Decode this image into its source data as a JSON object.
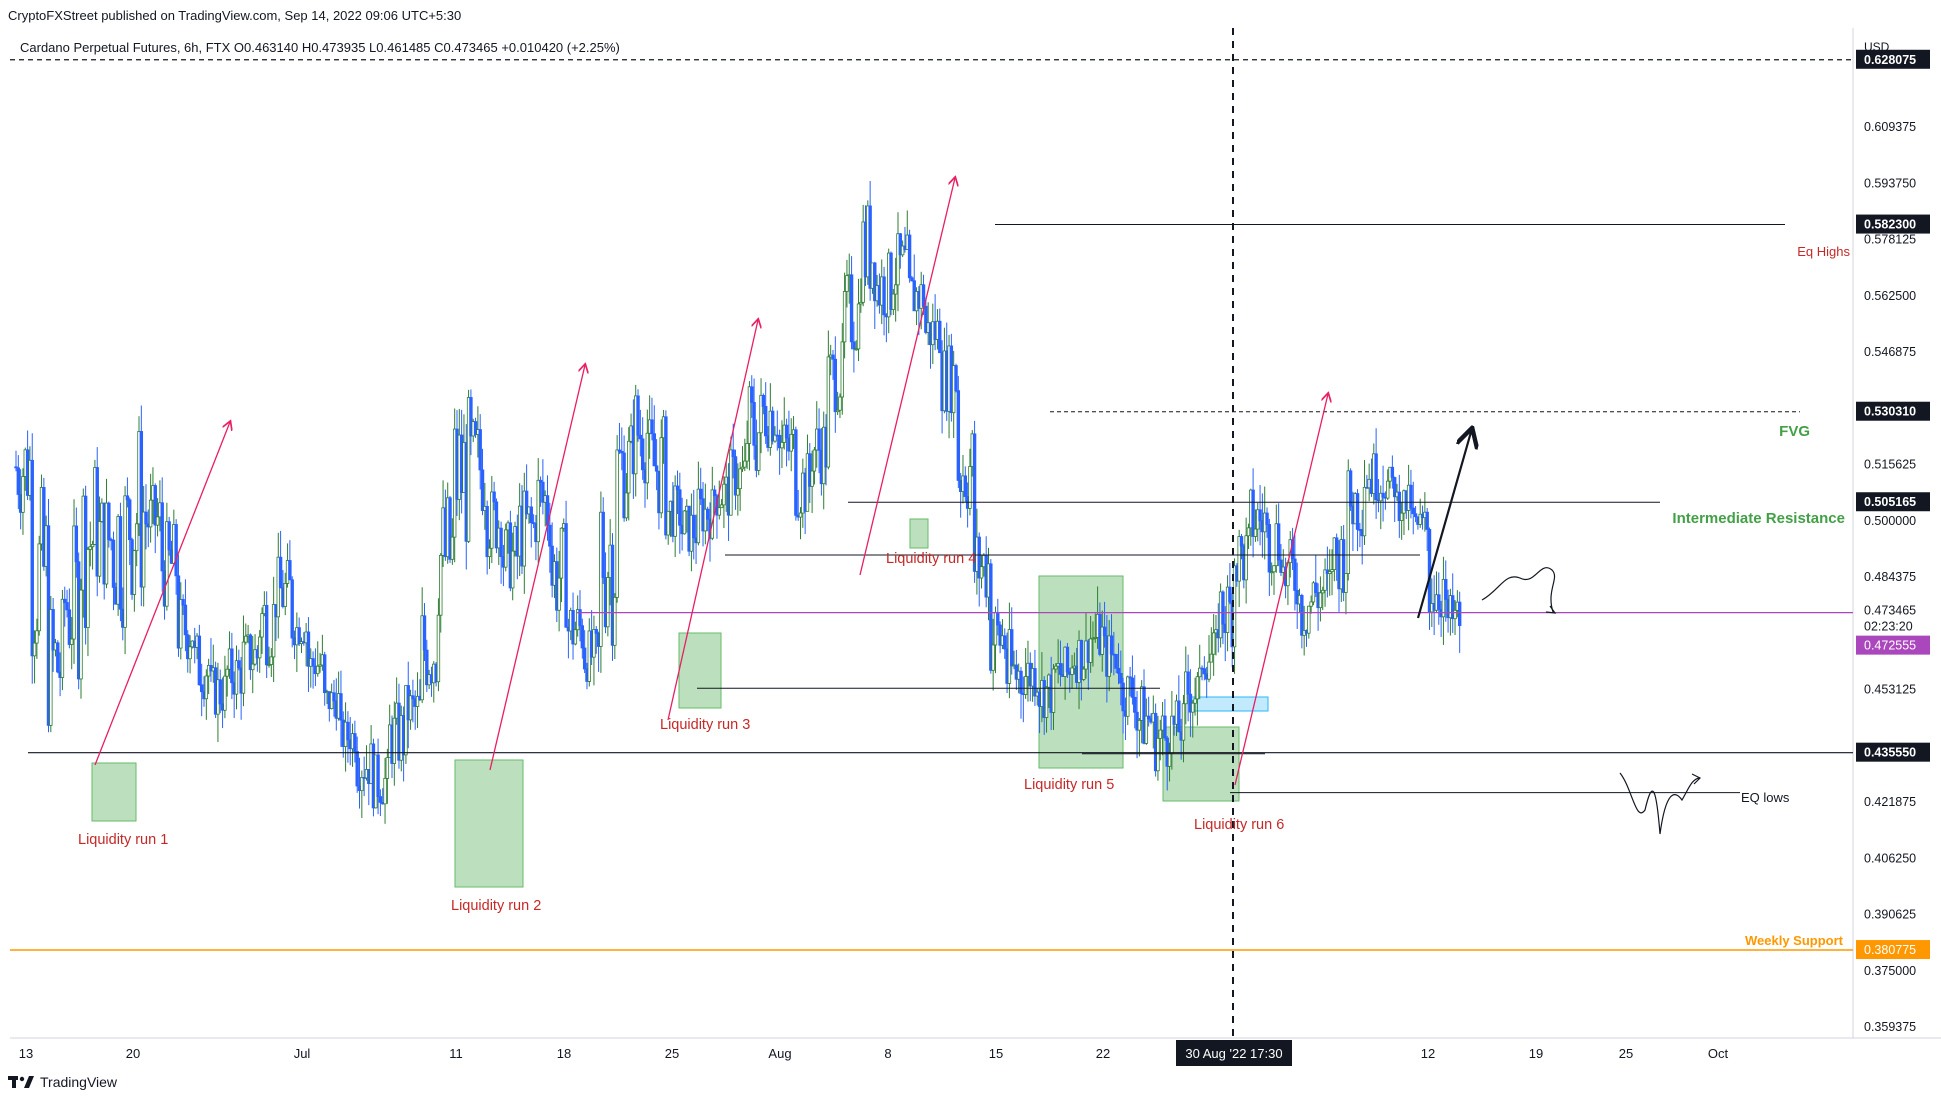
{
  "header": {
    "publisher": "CryptoFXStreet published on TradingView.com, Sep 14, 2022 09:06 UTC+5:30",
    "symbol_title": "Cardano Perpetual Futures, 6h, FTX  O0.463140  H0.473935  L0.461485  C0.473465  +0.010420 (+2.25%)"
  },
  "footer": {
    "brand": "TradingView",
    "logo_icon": "tradingview-logo-icon"
  },
  "colors": {
    "candle_up": "#26a69a",
    "candle_down": "#2962ff",
    "candle_body_up": "#2e7d32",
    "annotation_red": "#d32f2f",
    "annotation_green": "#43a047",
    "weekly_support": "#ff9800",
    "current_line": "#ab47bc",
    "zone_fill": "#a5d6a7",
    "fvg_box": "#b3e5fc"
  },
  "chart_data": {
    "type": "candlestick",
    "symbol": "Cardano Perpetual Futures",
    "timeframe": "6h",
    "exchange": "FTX",
    "ohlc_last": {
      "open": 0.46314,
      "high": 0.473935,
      "low": 0.461485,
      "close": 0.473465,
      "change": 0.01042,
      "change_pct": "+2.25%"
    },
    "y_axis": {
      "unit_label": "USD",
      "range": [
        0.352,
        0.64
      ],
      "ticks": [
        "0.609375",
        "0.593750",
        "0.578125",
        "0.562500",
        "0.546875",
        "0.515625",
        "0.500000",
        "0.484375",
        "0.453125",
        "0.421875",
        "0.406250",
        "0.390625",
        "0.375000",
        "0.359375"
      ]
    },
    "x_axis": {
      "ticks": [
        "13",
        "20",
        "Jul",
        "11",
        "18",
        "25",
        "Aug",
        "8",
        "15",
        "22",
        "12",
        "19",
        "25",
        "Oct"
      ],
      "crosshair_label": "30 Aug '22   17:30"
    },
    "price_labels": [
      {
        "value": "0.628075",
        "style": "dark"
      },
      {
        "value": "0.582300",
        "style": "dark"
      },
      {
        "value": "0.530310",
        "style": "dark"
      },
      {
        "value": "0.505165",
        "style": "dark"
      },
      {
        "value": "0.473465",
        "style": "plain"
      },
      {
        "value": "02:23:20",
        "style": "plain"
      },
      {
        "value": "0.472555",
        "style": "purple"
      },
      {
        "value": "0.435550",
        "style": "dark"
      },
      {
        "value": "0.380775",
        "style": "orange"
      }
    ],
    "levels": [
      {
        "name": "Eq Highs",
        "value": 0.5823
      },
      {
        "name": "FVG",
        "value": 0.53031
      },
      {
        "name": "Intermediate Resistance",
        "value": 0.505165
      },
      {
        "name": "EQ lows",
        "value": 0.4245
      },
      {
        "name": "Weekly Support",
        "value": 0.380775
      },
      {
        "name": "",
        "value": 0.628075
      },
      {
        "name": "",
        "value": 0.43555
      },
      {
        "name": "",
        "value": 0.473465
      }
    ],
    "annotations": [
      "Liquidity run 1",
      "Liquidity run 2",
      "Liquidity run 3",
      "Liquidity run 4",
      "Liquidity run 5",
      "Liquidity run 6"
    ],
    "price_path": [
      [
        0.5,
        0.53
      ],
      [
        0.46,
        0.51
      ],
      [
        0.44,
        0.48
      ],
      [
        0.455,
        0.5
      ],
      [
        0.47,
        0.52
      ],
      [
        0.48,
        0.51
      ],
      [
        0.47,
        0.52
      ],
      [
        0.475,
        0.53
      ],
      [
        0.49,
        0.51
      ],
      [
        0.475,
        0.5
      ],
      [
        0.46,
        0.48
      ],
      [
        0.45,
        0.47
      ],
      [
        0.445,
        0.46
      ],
      [
        0.45,
        0.465
      ],
      [
        0.455,
        0.47
      ],
      [
        0.46,
        0.485
      ],
      [
        0.47,
        0.49
      ],
      [
        0.465,
        0.475
      ],
      [
        0.455,
        0.465
      ],
      [
        0.445,
        0.455
      ],
      [
        0.435,
        0.445
      ],
      [
        0.425,
        0.44
      ],
      [
        0.42,
        0.435
      ],
      [
        0.43,
        0.45
      ],
      [
        0.44,
        0.455
      ],
      [
        0.45,
        0.48
      ],
      [
        0.47,
        0.51
      ],
      [
        0.49,
        0.535
      ],
      [
        0.5,
        0.53
      ],
      [
        0.49,
        0.51
      ],
      [
        0.48,
        0.5
      ],
      [
        0.485,
        0.51
      ],
      [
        0.49,
        0.52
      ],
      [
        0.47,
        0.5
      ],
      [
        0.46,
        0.48
      ],
      [
        0.455,
        0.47
      ],
      [
        0.465,
        0.52
      ],
      [
        0.5,
        0.53
      ],
      [
        0.51,
        0.54
      ],
      [
        0.5,
        0.53
      ],
      [
        0.495,
        0.51
      ],
      [
        0.49,
        0.505
      ],
      [
        0.495,
        0.51
      ],
      [
        0.5,
        0.515
      ],
      [
        0.505,
        0.52
      ],
      [
        0.51,
        0.54
      ],
      [
        0.52,
        0.54
      ],
      [
        0.51,
        0.53
      ],
      [
        0.5,
        0.52
      ],
      [
        0.51,
        0.53
      ],
      [
        0.53,
        0.55
      ],
      [
        0.545,
        0.57
      ],
      [
        0.56,
        0.59
      ],
      [
        0.555,
        0.575
      ],
      [
        0.56,
        0.58
      ],
      [
        0.555,
        0.57
      ],
      [
        0.545,
        0.56
      ],
      [
        0.53,
        0.55
      ],
      [
        0.5,
        0.53
      ],
      [
        0.475,
        0.5
      ],
      [
        0.455,
        0.48
      ],
      [
        0.445,
        0.47
      ],
      [
        0.45,
        0.465
      ],
      [
        0.445,
        0.46
      ],
      [
        0.45,
        0.465
      ],
      [
        0.455,
        0.47
      ],
      [
        0.46,
        0.475
      ],
      [
        0.455,
        0.47
      ],
      [
        0.445,
        0.46
      ],
      [
        0.435,
        0.455
      ],
      [
        0.43,
        0.45
      ],
      [
        0.435,
        0.45
      ],
      [
        0.445,
        0.46
      ],
      [
        0.455,
        0.47
      ],
      [
        0.465,
        0.485
      ],
      [
        0.48,
        0.5
      ],
      [
        0.49,
        0.51
      ],
      [
        0.485,
        0.505
      ],
      [
        0.475,
        0.495
      ],
      [
        0.465,
        0.49
      ],
      [
        0.47,
        0.49
      ],
      [
        0.48,
        0.5
      ],
      [
        0.495,
        0.515
      ],
      [
        0.505,
        0.52
      ],
      [
        0.505,
        0.515
      ],
      [
        0.5,
        0.51
      ],
      [
        0.49,
        0.505
      ],
      [
        0.47,
        0.495
      ],
      [
        0.465,
        0.48
      ]
    ]
  }
}
